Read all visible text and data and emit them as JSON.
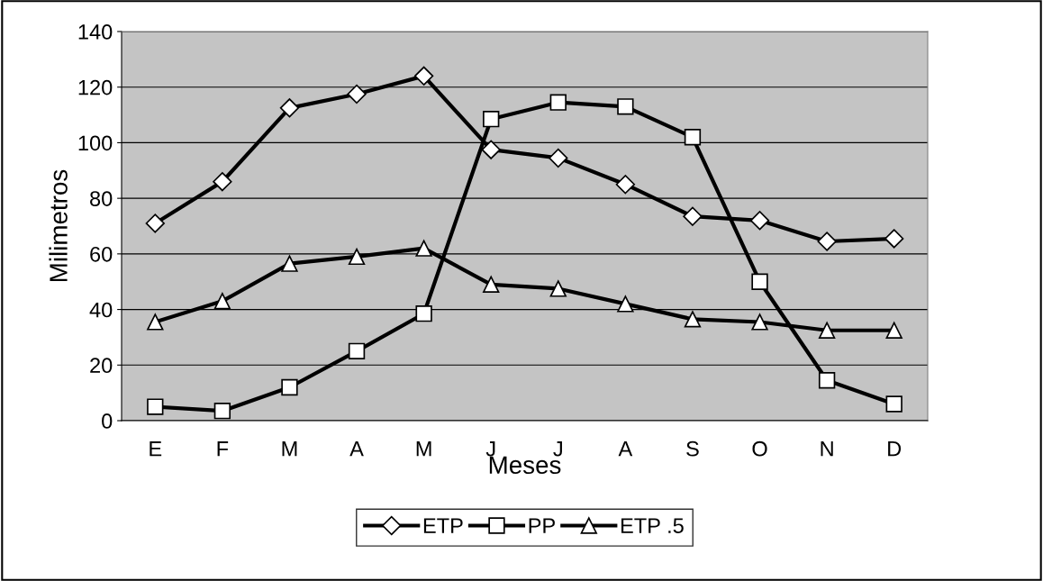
{
  "chart_data": {
    "type": "line",
    "xlabel": "Meses",
    "ylabel": "Milimetros",
    "categories": [
      "E",
      "F",
      "M",
      "A",
      "M",
      "J",
      "J",
      "A",
      "S",
      "O",
      "N",
      "D"
    ],
    "series": [
      {
        "name": "ETP",
        "color": "#000000",
        "marker": "diamond",
        "values": [
          71,
          86,
          112.5,
          117.5,
          124,
          97.5,
          94.5,
          85,
          73.5,
          72,
          64.5,
          65.5
        ]
      },
      {
        "name": "PP",
        "color": "#000000",
        "marker": "square",
        "values": [
          5,
          3.5,
          12,
          25,
          38.5,
          108.5,
          114.5,
          113,
          102,
          50,
          14.5,
          6
        ]
      },
      {
        "name": "ETP .5",
        "color": "#000000",
        "marker": "triangle",
        "values": [
          35.5,
          43,
          56.5,
          59,
          62,
          49,
          47.5,
          42,
          36.5,
          35.5,
          32.5,
          32.5
        ]
      }
    ],
    "ylim": [
      0,
      140
    ],
    "yticks": [
      0,
      20,
      40,
      60,
      80,
      100,
      120,
      140
    ],
    "grid": "y",
    "legend": "bottom",
    "line_style": "solid"
  }
}
